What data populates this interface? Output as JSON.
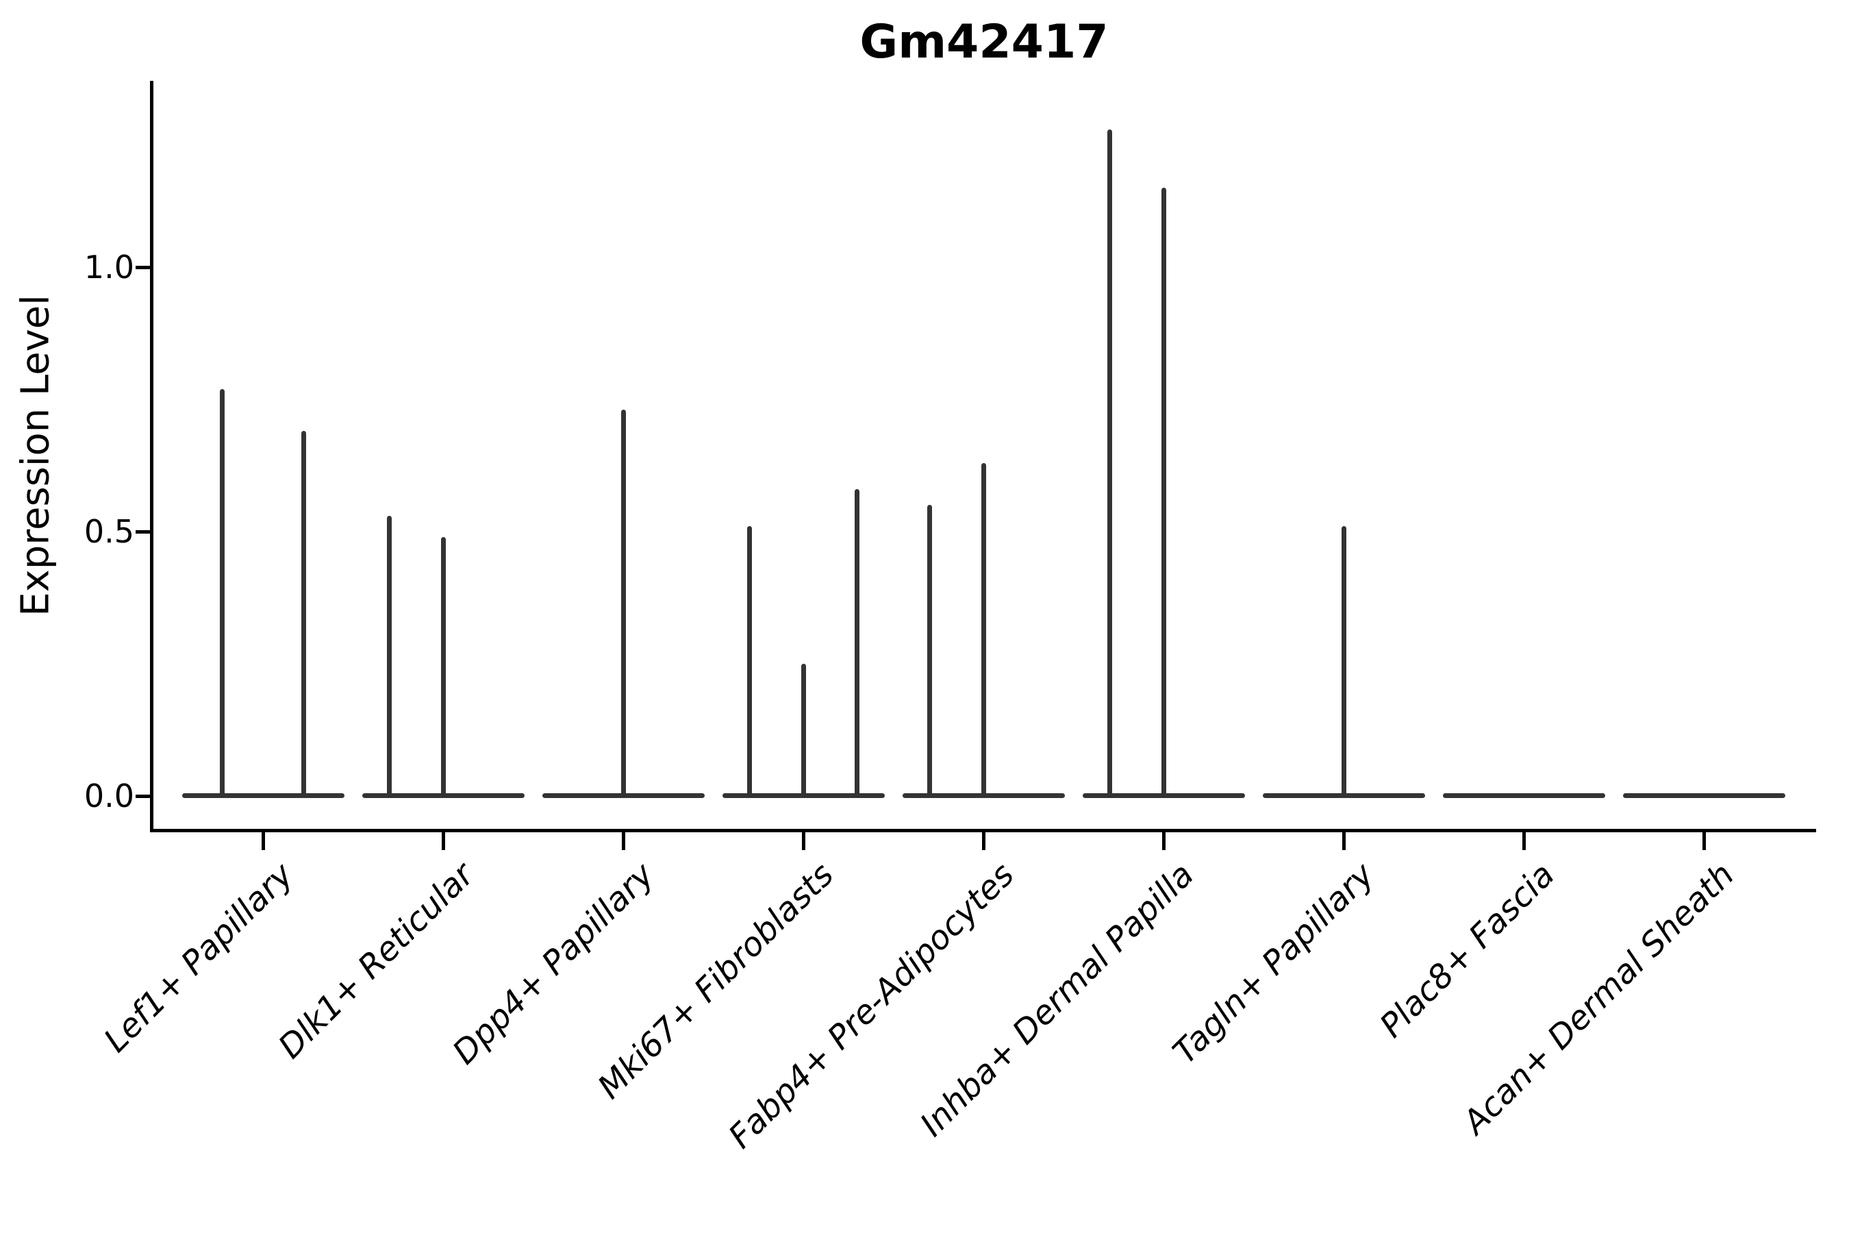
{
  "chart": {
    "title": "Gm42417",
    "ylabel": "Expression Level"
  },
  "chart_data": {
    "type": "violin",
    "title": "Gm42417",
    "xlabel": "",
    "ylabel": "Expression Level",
    "ylim": [
      -0.06,
      1.35
    ],
    "yticks": [
      0.0,
      0.5,
      1.0
    ],
    "ytick_labels": [
      "0.0",
      "0.5",
      "1.0"
    ],
    "grid": false,
    "legend": "none",
    "line_color": "#333333",
    "axis_color": "#000000",
    "categories": [
      "Lef1+ Papillary",
      "Dlk1+ Reticular",
      "Dpp4+ Papillary",
      "Mki67+ Fibroblasts",
      "Fabp4+ Pre-Adipocytes",
      "Inhba+ Dermal Papilla",
      "Tagln+ Papillary",
      "Plac8+ Fascia",
      "Acan+ Dermal Sheath"
    ],
    "series_note": "Each category shows flat violin(s) at 0 with thin spikes up to the max expression value; zeros mean a flat violin with no spike.",
    "violins_max_per_category": [
      [
        0.77,
        0.69
      ],
      [
        0.53,
        0.49,
        0
      ],
      [
        0.73
      ],
      [
        0.51,
        0.25,
        0.58
      ],
      [
        0.55,
        0.63,
        0
      ],
      [
        1.26,
        1.15,
        0
      ],
      [
        0.51
      ],
      [
        0
      ],
      [
        0
      ]
    ]
  }
}
